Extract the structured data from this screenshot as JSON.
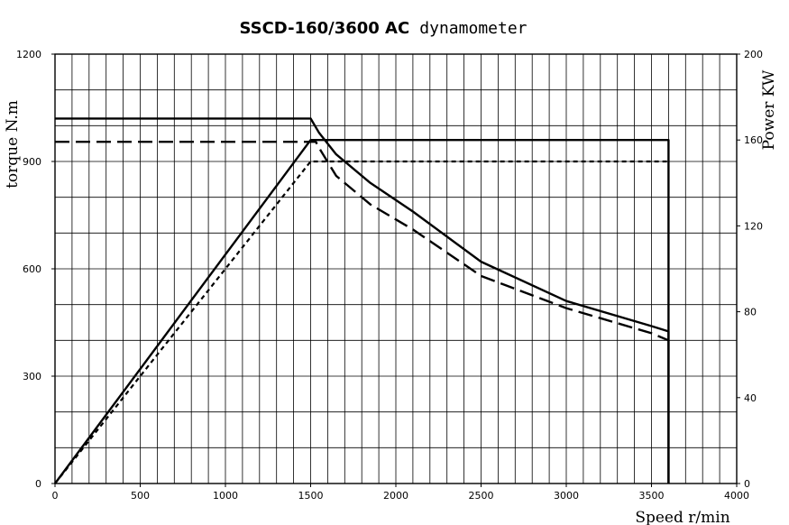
{
  "chart_data": {
    "type": "line",
    "title": {
      "bold": "SSCD-160/3600 AC",
      "regular": "dynamometer"
    },
    "xlabel": "Speed r/min",
    "ylabel_left": "torque N.m",
    "ylabel_right": "Power KW",
    "xlim": [
      0,
      4000
    ],
    "ylim_left": [
      0,
      1200
    ],
    "ylim_right": [
      0,
      200
    ],
    "x_ticks": [
      "0",
      "500",
      "1000",
      "1500",
      "2000",
      "2500",
      "3000",
      "3500",
      "4000"
    ],
    "y_left_ticks": [
      "0",
      "300",
      "600",
      "900",
      "1200"
    ],
    "y_right_ticks": [
      "0",
      "40",
      "80",
      "120",
      "160",
      "200"
    ],
    "grid": true,
    "grid_x_step": 100,
    "grid_y_step": 100,
    "series": [
      {
        "axis": "left",
        "style": "solid",
        "x": [
          0,
          1500,
          1550,
          1650,
          1850,
          2100,
          2500,
          3000,
          3500,
          3600,
          3600
        ],
        "y": [
          1020,
          1020,
          980,
          920,
          840,
          760,
          620,
          510,
          440,
          425,
          0
        ]
      },
      {
        "axis": "right",
        "style": "solid",
        "x": [
          0,
          1500,
          1520,
          3600,
          3600
        ],
        "y": [
          0,
          160,
          160,
          160,
          0
        ]
      },
      {
        "axis": "left",
        "style": "dashed",
        "x": [
          0,
          1530,
          1560,
          1650,
          1850,
          2100,
          2500,
          3000,
          3500,
          3600
        ],
        "y": [
          955,
          955,
          930,
          860,
          780,
          710,
          580,
          490,
          420,
          400
        ]
      },
      {
        "axis": "right",
        "style": "dotted",
        "x": [
          0,
          1500,
          1600,
          3600
        ],
        "y": [
          0,
          150,
          150,
          150
        ]
      }
    ]
  }
}
